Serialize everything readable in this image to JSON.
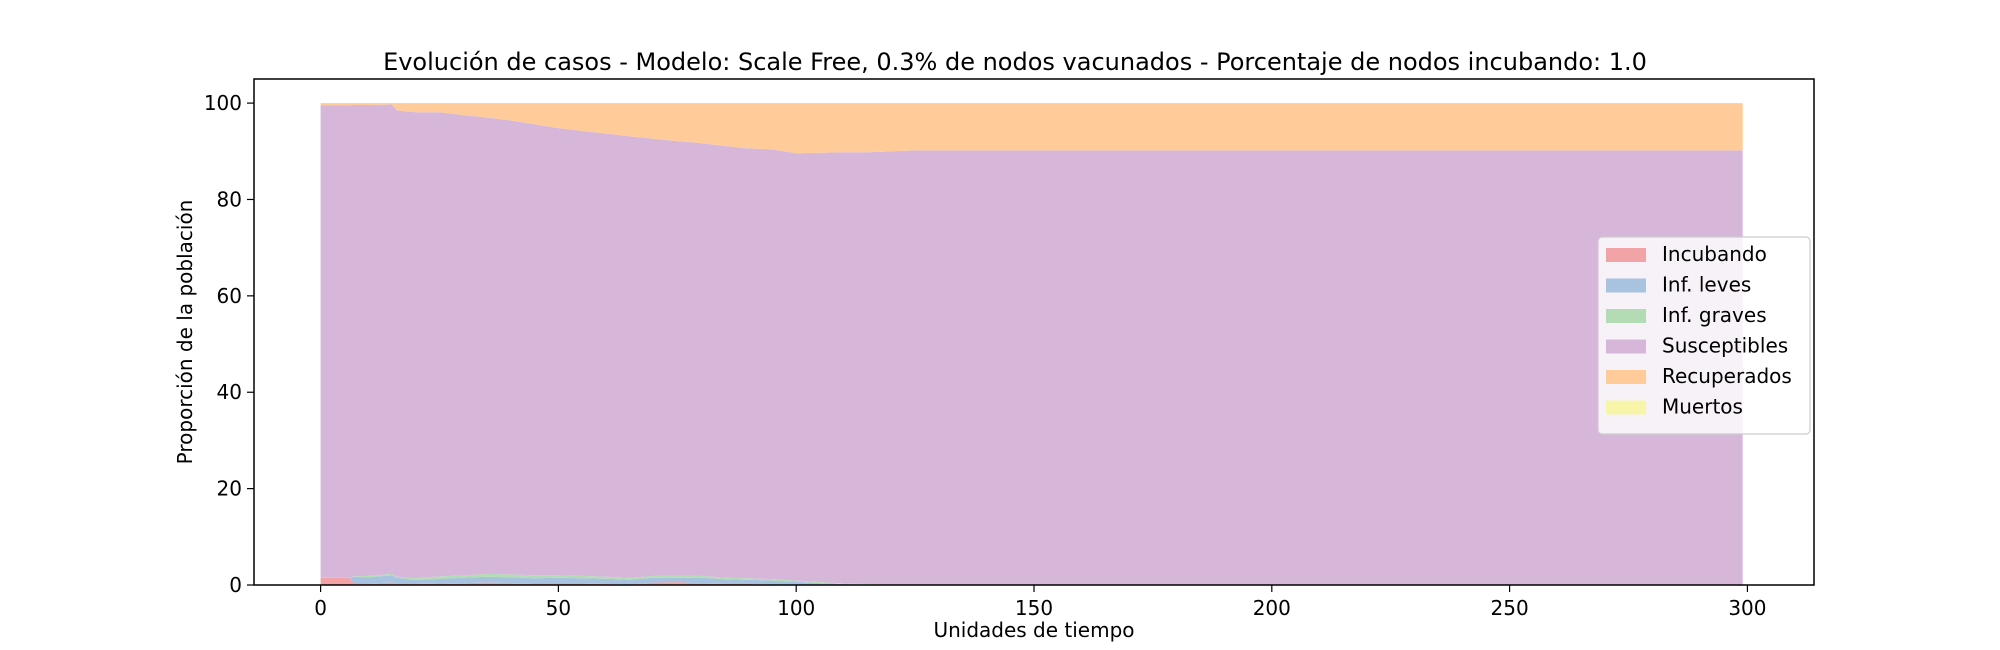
{
  "chart_data": {
    "type": "area",
    "stacked": true,
    "title": "Evolución de casos - Modelo: Scale Free, 0.3% de nodos vacunados - Porcentaje de nodos incubando: 1.0",
    "xlabel": "Unidades de tiempo",
    "ylabel": "Proporción de la población",
    "xlim": [
      -14,
      314
    ],
    "ylim": [
      0,
      105
    ],
    "xticks": [
      0,
      50,
      100,
      150,
      200,
      250,
      300
    ],
    "yticks": [
      0,
      20,
      40,
      60,
      80,
      100
    ],
    "grid": false,
    "legend_position": "center-right",
    "x": [
      0,
      6,
      7,
      10,
      15,
      16,
      20,
      25,
      30,
      35,
      40,
      45,
      50,
      55,
      60,
      65,
      70,
      75,
      80,
      85,
      90,
      95,
      100,
      105,
      110,
      115,
      120,
      125,
      150,
      200,
      250,
      299
    ],
    "series": [
      {
        "name": "Incubando",
        "color": "#f1a3a6",
        "values": [
          1.5,
          1.5,
          0.3,
          0.3,
          0.5,
          0.2,
          0.2,
          0.3,
          0.4,
          0.5,
          0.4,
          0.3,
          0.3,
          0.3,
          0.2,
          0.1,
          0.5,
          0.6,
          0.3,
          0.2,
          0.2,
          0.1,
          0.1,
          0.0,
          0.0,
          0.0,
          0.0,
          0.0,
          0.0,
          0.0,
          0.0,
          0.0
        ]
      },
      {
        "name": "Inf. leves",
        "color": "#a8c3e0",
        "values": [
          0.0,
          0.0,
          1.4,
          1.3,
          1.5,
          1.3,
          0.8,
          1.0,
          1.1,
          1.2,
          1.2,
          1.1,
          1.2,
          1.1,
          1.1,
          1.0,
          1.0,
          0.9,
          1.2,
          1.0,
          0.9,
          0.8,
          0.6,
          0.4,
          0.2,
          0.1,
          0.0,
          0.0,
          0.0,
          0.0,
          0.0,
          0.0
        ]
      },
      {
        "name": "Inf. graves",
        "color": "#b3dcb4",
        "values": [
          0.0,
          0.0,
          0.1,
          0.3,
          0.3,
          0.2,
          0.4,
          0.5,
          0.5,
          0.6,
          0.6,
          0.6,
          0.5,
          0.5,
          0.4,
          0.4,
          0.4,
          0.4,
          0.4,
          0.3,
          0.3,
          0.3,
          0.2,
          0.2,
          0.1,
          0.1,
          0.0,
          0.0,
          0.0,
          0.0,
          0.0,
          0.0
        ]
      },
      {
        "name": "Susceptibles",
        "color": "#d6b7d9",
        "values": [
          98.0,
          98.0,
          97.8,
          97.7,
          97.4,
          96.8,
          96.7,
          96.3,
          95.5,
          94.7,
          94.2,
          93.6,
          92.8,
          92.3,
          92.0,
          91.6,
          90.7,
          90.2,
          89.8,
          89.6,
          89.2,
          89.2,
          88.7,
          89.1,
          89.5,
          89.6,
          90.0,
          90.2,
          90.2,
          90.2,
          90.2,
          90.2
        ]
      },
      {
        "name": "Recuperados",
        "color": "#ffcc99",
        "values": [
          0.5,
          0.5,
          0.4,
          0.4,
          0.3,
          1.5,
          1.9,
          1.9,
          2.5,
          3.0,
          3.6,
          4.4,
          5.2,
          5.8,
          6.3,
          6.9,
          7.4,
          7.9,
          8.3,
          8.9,
          9.4,
          9.6,
          10.4,
          10.3,
          10.2,
          10.2,
          10.0,
          9.8,
          9.8,
          9.8,
          9.8,
          9.8
        ]
      },
      {
        "name": "Muertos",
        "color": "#f9f5a8",
        "values": [
          0.0,
          0.0,
          0.0,
          0.0,
          0.0,
          0.0,
          0.0,
          0.0,
          0.0,
          0.0,
          0.0,
          0.0,
          0.0,
          0.0,
          0.0,
          0.0,
          0.0,
          0.0,
          0.0,
          0.0,
          0.0,
          0.0,
          0.0,
          0.0,
          0.0,
          0.0,
          0.0,
          0.0,
          0.0,
          0.0,
          0.0,
          0.0
        ]
      }
    ]
  }
}
